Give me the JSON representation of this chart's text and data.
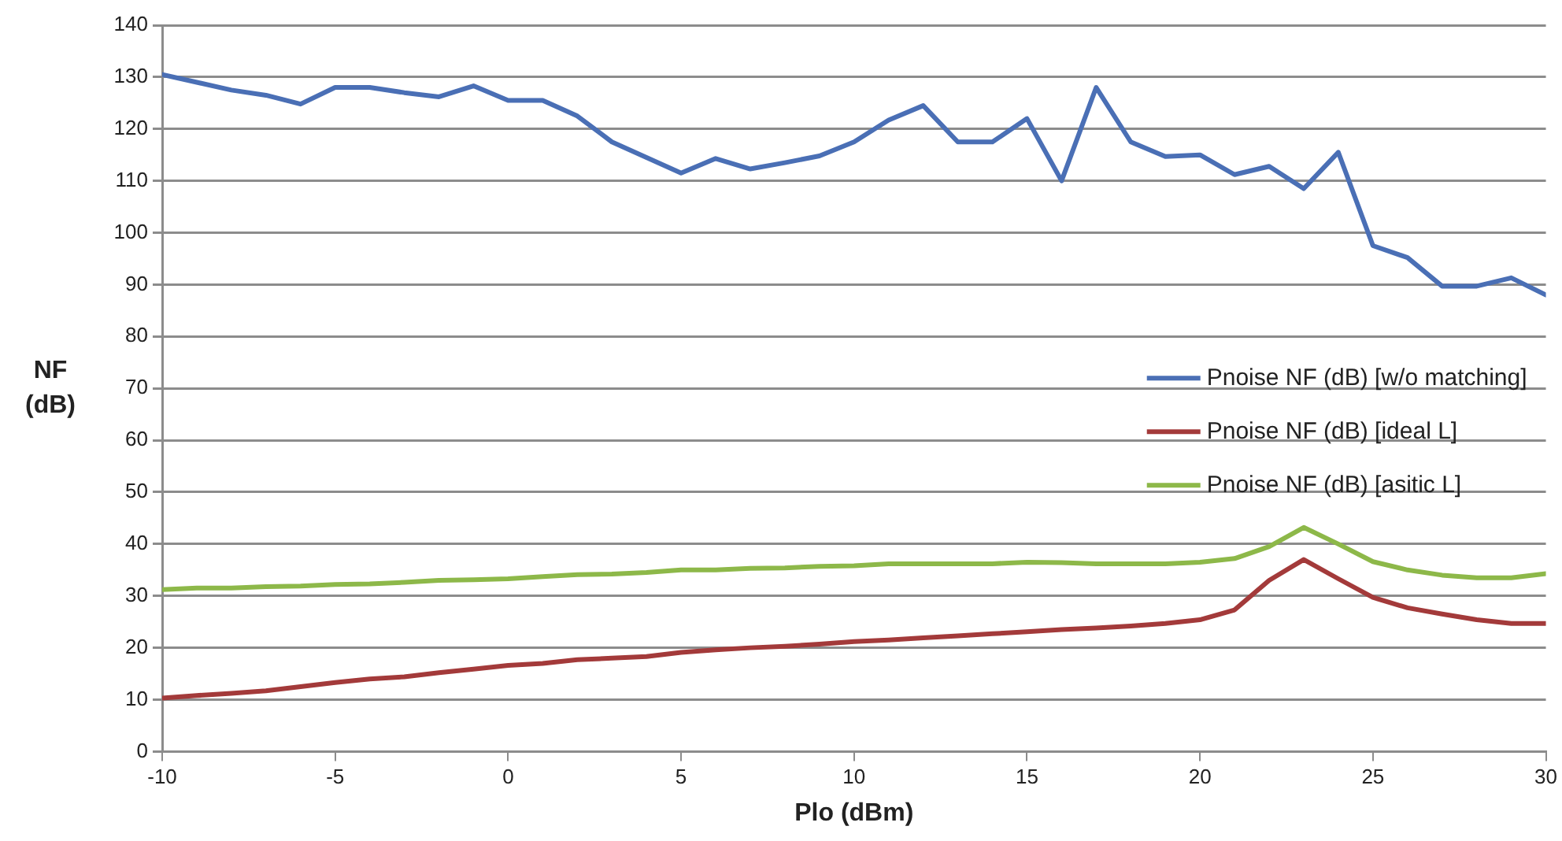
{
  "chart_data": {
    "type": "line",
    "xlabel": "Plo (dBm)",
    "ylabel": "NF (dB)",
    "x": [
      -10,
      -9,
      -8,
      -7,
      -6,
      -5,
      -4,
      -3,
      -2,
      -1,
      0,
      1,
      2,
      3,
      4,
      5,
      6,
      7,
      8,
      9,
      10,
      11,
      12,
      13,
      14,
      15,
      16,
      17,
      18,
      19,
      20,
      21,
      22,
      23,
      24,
      25,
      26,
      27,
      28,
      29,
      30
    ],
    "series": [
      {
        "name": "Pnoise NF (dB) [w/o matching]",
        "color": "#4a6fb5",
        "values": [
          130.5,
          129,
          127.5,
          126.5,
          124.8,
          128,
          128,
          127,
          126.2,
          128.3,
          125.5,
          125.5,
          122.5,
          117.5,
          114.5,
          111.5,
          114.3,
          112.3,
          113.5,
          114.8,
          117.5,
          121.7,
          124.5,
          117.5,
          117.5,
          122,
          110,
          128,
          117.5,
          114.7,
          115,
          111.2,
          112.8,
          108.5,
          115.5,
          97.5,
          95.2,
          89.7,
          89.7,
          91.3,
          88
        ]
      },
      {
        "name": "Pnoise NF (dB) [ideal L]",
        "color": "#a33a3a",
        "values": [
          10.3,
          10.8,
          11.2,
          11.7,
          12.5,
          13.3,
          14,
          14.4,
          15.2,
          15.9,
          16.6,
          17,
          17.7,
          18,
          18.3,
          19.1,
          19.6,
          20,
          20.3,
          20.7,
          21.2,
          21.5,
          21.9,
          22.3,
          22.7,
          23.1,
          23.5,
          23.8,
          24.2,
          24.7,
          25.4,
          27.3,
          33,
          37,
          33.3,
          29.7,
          27.7,
          26.5,
          25.4,
          24.7,
          24.7
        ]
      },
      {
        "name": "Pnoise NF (dB) [asitic L]",
        "color": "#8db849",
        "values": [
          31.2,
          31.5,
          31.5,
          31.8,
          31.9,
          32.2,
          32.3,
          32.6,
          33,
          33.1,
          33.3,
          33.7,
          34.1,
          34.2,
          34.5,
          35,
          35,
          35.3,
          35.4,
          35.7,
          35.8,
          36.2,
          36.2,
          36.2,
          36.2,
          36.5,
          36.4,
          36.2,
          36.2,
          36.2,
          36.5,
          37.2,
          39.5,
          43.2,
          40,
          36.6,
          35,
          34,
          33.5,
          33.5,
          34.3
        ]
      }
    ],
    "xlim": [
      -10,
      30
    ],
    "xticks": [
      -10,
      -5,
      0,
      5,
      10,
      15,
      20,
      25,
      30
    ],
    "ylim": [
      0,
      140
    ],
    "yticks": [
      0,
      10,
      20,
      30,
      40,
      50,
      60,
      70,
      80,
      90,
      100,
      110,
      120,
      130,
      140
    ],
    "grid": "y",
    "legend": "right",
    "marker": "none",
    "line_style": "solid"
  }
}
